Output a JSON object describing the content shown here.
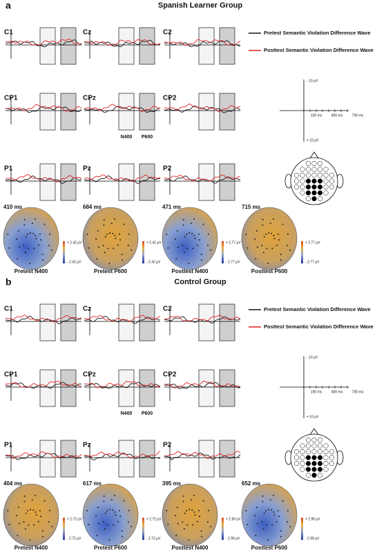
{
  "panels": [
    {
      "label": "a",
      "title": "Spanish Learner Group",
      "electrodes": [
        [
          "C1",
          "Cz",
          "C2"
        ],
        [
          "CP1",
          "CPz",
          "CP2"
        ],
        [
          "P1",
          "Pz",
          "P2"
        ]
      ],
      "window_labels": [
        "N400",
        "P600"
      ],
      "legend": [
        "Pretest Semantic Violation Difference Wave",
        "Posttest Semantic Violation Difference Wave"
      ],
      "scale": {
        "top": "- 10 µV",
        "bottom": "+ 10 µV",
        "times": [
          "100 ms",
          "400 ms",
          "700 ms"
        ]
      },
      "topomaps": [
        {
          "latency": "410 ms",
          "caption": "Pretest N400",
          "max": "+ 2.42 µV",
          "min": "- 2.42 µV"
        },
        {
          "latency": "684 ms",
          "caption": "Pretest P600",
          "max": "+ 2.42 µV",
          "min": "- 2.42 µV"
        },
        {
          "latency": "471 ms",
          "caption": "Posttest N400",
          "max": "+ 2.77 µV",
          "min": "- 2.77 µV"
        },
        {
          "latency": "715 ms",
          "caption": "Posttest P600",
          "max": "+ 2.77 µV",
          "min": "- 2.77 µV"
        }
      ]
    },
    {
      "label": "b",
      "title": "Control Group",
      "electrodes": [
        [
          "C1",
          "Cz",
          "C2"
        ],
        [
          "CP1",
          "CPz",
          "CP2"
        ],
        [
          "P1",
          "Pz",
          "P2"
        ]
      ],
      "window_labels": [
        "N400",
        "P600"
      ],
      "legend": [
        "Pretest Semantic Violation Difference Wave",
        "Posttest Semantic Violation Difference Wave"
      ],
      "scale": {
        "top": "- 10 µV",
        "bottom": "+ 10 µV",
        "times": [
          "100 ms",
          "400 ms",
          "700 ms"
        ]
      },
      "topomaps": [
        {
          "latency": "404 ms",
          "caption": "Pretest N400",
          "max": "+ 2.72 µV",
          "min": "- 2.72 µV"
        },
        {
          "latency": "617 ms",
          "caption": "Pretest P600",
          "max": "+ 2.72 µV",
          "min": "- 2.72 µV"
        },
        {
          "latency": "395 ms",
          "caption": "Posttest N400",
          "max": "+ 2.99 µV",
          "min": "- 2.99 µV"
        },
        {
          "latency": "652 ms",
          "caption": "Posttest P600",
          "max": "+ 2.99 µV",
          "min": "- 2.99 µV"
        }
      ]
    }
  ]
}
